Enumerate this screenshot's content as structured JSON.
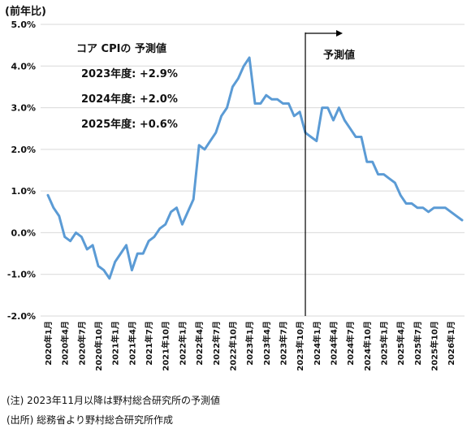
{
  "chart_data": {
    "type": "line",
    "unit_label": "(前年比)",
    "ylim": [
      -2.0,
      5.0
    ],
    "y_ticks": [
      "-2.0%",
      "-1.0%",
      "0.0%",
      "1.0%",
      "2.0%",
      "3.0%",
      "4.0%",
      "5.0%"
    ],
    "x_tick_labels": [
      "2020年1月",
      "2020年4月",
      "2020年7月",
      "2020年10月",
      "2021年1月",
      "2021年4月",
      "2021年7月",
      "2021年10月",
      "2022年1月",
      "2022年4月",
      "2022年7月",
      "2022年10月",
      "2023年1月",
      "2023年4月",
      "2023年7月",
      "2023年10月",
      "2024年1月",
      "2024年4月",
      "2024年7月",
      "2024年10月",
      "2025年1月",
      "2025年4月",
      "2025年7月",
      "2025年10月",
      "2026年1月"
    ],
    "forecast_label": "予測値",
    "forecast_start": "2023年11月",
    "forecast_box": {
      "title": "コア CPIの 予測値",
      "lines": [
        "2023年度: +2.9%",
        "2024年度: +2.0%",
        "2025年度: +0.6%"
      ]
    },
    "series": [
      {
        "color": "#5b9bd5",
        "values": [
          0.9,
          0.6,
          0.4,
          -0.1,
          -0.2,
          0.0,
          -0.1,
          -0.4,
          -0.3,
          -0.8,
          -0.9,
          -1.1,
          -0.7,
          -0.5,
          -0.3,
          -0.9,
          -0.5,
          -0.5,
          -0.2,
          -0.1,
          0.1,
          0.2,
          0.5,
          0.6,
          0.2,
          0.5,
          0.8,
          2.1,
          2.0,
          2.2,
          2.4,
          2.8,
          3.0,
          3.5,
          3.7,
          4.0,
          4.2,
          3.1,
          3.1,
          3.3,
          3.2,
          3.2,
          3.1,
          3.1,
          2.8,
          2.9,
          2.4,
          2.3,
          2.2,
          3.0,
          3.0,
          2.7,
          3.0,
          2.7,
          2.5,
          2.3,
          2.3,
          1.7,
          1.7,
          1.4,
          1.4,
          1.3,
          1.2,
          0.9,
          0.7,
          0.7,
          0.6,
          0.6,
          0.5,
          0.6,
          0.6,
          0.6,
          0.5,
          0.4,
          0.3
        ]
      }
    ]
  },
  "notes": [
    "(注) 2023年11月以降は野村総合研究所の予測値",
    "(出所) 総務省より野村総合研究所作成"
  ]
}
